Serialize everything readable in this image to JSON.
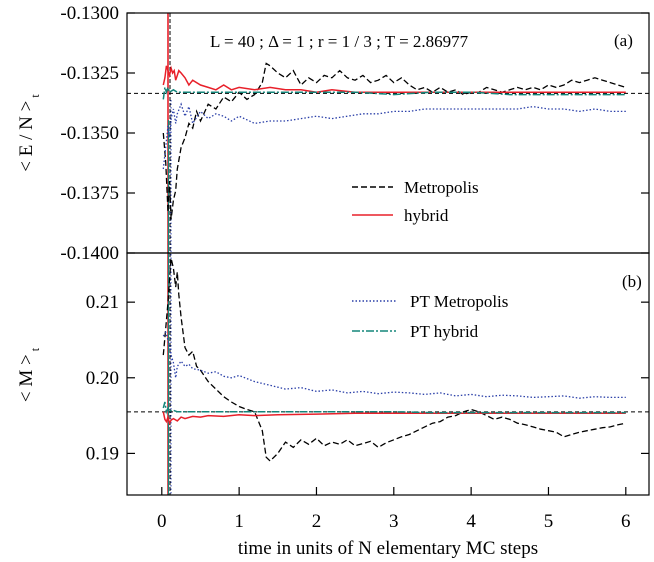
{
  "chart_data": [
    {
      "type": "line",
      "panel_label": "(a)",
      "annotation": "L = 40 ;  Δ = 1 ;  r = 1 / 3 ;  T = 2.86977",
      "ylabel": "< E / N >",
      "ylabel_sub": "t",
      "ylim": [
        -0.14,
        -0.13
      ],
      "yticks": [
        "-0.1300",
        "-0.1325",
        "-0.1350",
        "-0.1375",
        "-0.1400"
      ],
      "ytick_values": [
        -0.13,
        -0.1325,
        -0.135,
        -0.1375,
        -0.14
      ],
      "xlim": [
        -0.45,
        6.3
      ],
      "reference_line": -0.13335,
      "legend": [
        "Metropolis",
        "hybrid"
      ],
      "series": [
        {
          "name": "Metropolis",
          "color": "#000000",
          "dash": "6,3",
          "x": [
            0.02,
            0.05,
            0.08,
            0.1,
            0.12,
            0.15,
            0.18,
            0.2,
            0.25,
            0.3,
            0.35,
            0.4,
            0.45,
            0.5,
            0.6,
            0.7,
            0.8,
            0.9,
            1.0,
            1.1,
            1.2,
            1.3,
            1.35,
            1.4,
            1.5,
            1.6,
            1.7,
            1.8,
            1.9,
            2.0,
            2.1,
            2.2,
            2.3,
            2.4,
            2.5,
            2.6,
            2.7,
            2.8,
            2.9,
            3.0,
            3.1,
            3.2,
            3.3,
            3.4,
            3.5,
            3.6,
            3.7,
            3.8,
            3.9,
            4.0,
            4.1,
            4.2,
            4.3,
            4.4,
            4.5,
            4.6,
            4.7,
            4.8,
            4.9,
            5.0,
            5.1,
            5.2,
            5.3,
            5.4,
            5.5,
            5.6,
            5.7,
            5.8,
            5.9,
            6.0
          ],
          "y": [
            -0.135,
            -0.1362,
            -0.1383,
            -0.137,
            -0.1386,
            -0.1378,
            -0.1374,
            -0.1365,
            -0.1356,
            -0.1352,
            -0.1346,
            -0.1348,
            -0.1341,
            -0.1345,
            -0.1338,
            -0.134,
            -0.1335,
            -0.1337,
            -0.1333,
            -0.1336,
            -0.1334,
            -0.1329,
            -0.1321,
            -0.1322,
            -0.1325,
            -0.1327,
            -0.1324,
            -0.133,
            -0.1327,
            -0.1329,
            -0.1326,
            -0.1327,
            -0.1324,
            -0.1327,
            -0.1328,
            -0.1326,
            -0.1329,
            -0.1328,
            -0.1326,
            -0.1329,
            -0.1327,
            -0.133,
            -0.1332,
            -0.1331,
            -0.1333,
            -0.1331,
            -0.1333,
            -0.1332,
            -0.1334,
            -0.1333,
            -0.1333,
            -0.1331,
            -0.1332,
            -0.1333,
            -0.1332,
            -0.1331,
            -0.1332,
            -0.1331,
            -0.1332,
            -0.133,
            -0.1331,
            -0.133,
            -0.1328,
            -0.1329,
            -0.1328,
            -0.1327,
            -0.1328,
            -0.1329,
            -0.133,
            -0.1331
          ]
        },
        {
          "name": "hybrid",
          "color": "#e8202a",
          "dash": "",
          "x": [
            0.02,
            0.04,
            0.06,
            0.08,
            0.1,
            0.12,
            0.14,
            0.16,
            0.18,
            0.2,
            0.22,
            0.25,
            0.3,
            0.35,
            0.4,
            0.5,
            0.6,
            0.7,
            0.8,
            0.9,
            1.0,
            1.2,
            1.4,
            1.6,
            1.8,
            2.0,
            2.2,
            2.5,
            3.0,
            3.5,
            4.0,
            4.5,
            5.0,
            5.5,
            6.0
          ],
          "y": [
            -0.133,
            -0.1327,
            -0.1322,
            -0.1324,
            -0.1326,
            -0.1323,
            -0.1325,
            -0.1324,
            -0.1328,
            -0.1326,
            -0.1324,
            -0.1325,
            -0.1327,
            -0.133,
            -0.1328,
            -0.133,
            -0.1331,
            -0.1332,
            -0.133,
            -0.1332,
            -0.1331,
            -0.1332,
            -0.1331,
            -0.1332,
            -0.1332,
            -0.1333,
            -0.1332,
            -0.1333,
            -0.1333,
            -0.1333,
            -0.1333,
            -0.1333,
            -0.1333,
            -0.1333,
            -0.1333
          ]
        },
        {
          "name": "PT Metropolis",
          "color": "#2a3fa8",
          "dash": "1.5,2",
          "x": [
            0.02,
            0.05,
            0.08,
            0.1,
            0.12,
            0.15,
            0.18,
            0.2,
            0.25,
            0.3,
            0.35,
            0.4,
            0.5,
            0.6,
            0.7,
            0.8,
            0.9,
            1.0,
            1.2,
            1.4,
            1.6,
            1.8,
            2.0,
            2.2,
            2.4,
            2.6,
            2.8,
            3.0,
            3.2,
            3.4,
            3.6,
            3.8,
            4.0,
            4.2,
            4.4,
            4.6,
            4.8,
            5.0,
            5.2,
            5.4,
            5.6,
            5.8,
            6.0
          ],
          "y": [
            -0.1365,
            -0.1356,
            -0.1347,
            -0.1352,
            -0.1344,
            -0.134,
            -0.1346,
            -0.1342,
            -0.1338,
            -0.1343,
            -0.1339,
            -0.1346,
            -0.1341,
            -0.1344,
            -0.1342,
            -0.1343,
            -0.1345,
            -0.1343,
            -0.1346,
            -0.1345,
            -0.1345,
            -0.1344,
            -0.1343,
            -0.1344,
            -0.1343,
            -0.1342,
            -0.1342,
            -0.1341,
            -0.1341,
            -0.134,
            -0.134,
            -0.134,
            -0.134,
            -0.134,
            -0.134,
            -0.134,
            -0.1339,
            -0.134,
            -0.134,
            -0.1341,
            -0.134,
            -0.1341,
            -0.1341
          ]
        },
        {
          "name": "PT hybrid",
          "color": "#14857a",
          "dash": "8,2,2,2",
          "x": [
            0.02,
            0.04,
            0.06,
            0.08,
            0.1,
            0.15,
            0.2,
            0.3,
            0.4,
            0.5,
            0.7,
            1.0,
            1.5,
            2.0,
            2.5,
            3.0,
            3.5,
            4.0,
            4.5,
            5.0,
            5.5,
            6.0
          ],
          "y": [
            -0.1336,
            -0.1331,
            -0.1333,
            -0.1331,
            -0.1333,
            -0.1332,
            -0.1333,
            -0.1333,
            -0.1333,
            -0.1333,
            -0.1333,
            -0.1333,
            -0.1333,
            -0.1333,
            -0.1333,
            -0.1334,
            -0.1333,
            -0.1333,
            -0.1334,
            -0.1334,
            -0.1334,
            -0.1334
          ]
        }
      ]
    },
    {
      "type": "line",
      "panel_label": "(b)",
      "ylabel": "< M >",
      "ylabel_sub": "t",
      "ylim": [
        0.1845,
        0.2165
      ],
      "yticks": [
        "0.21",
        "0.20",
        "0.19"
      ],
      "ytick_values": [
        0.21,
        0.2,
        0.19
      ],
      "xlim": [
        -0.45,
        6.3
      ],
      "xticks": [
        "0",
        "1",
        "2",
        "3",
        "4",
        "5",
        "6"
      ],
      "xtick_values": [
        0,
        1,
        2,
        3,
        4,
        5,
        6
      ],
      "xlabel": "time in units of N elementary MC steps",
      "reference_line": 0.1955,
      "legend": [
        "PT Metropolis",
        "PT hybrid"
      ],
      "series": [
        {
          "name": "Metropolis",
          "color": "#000000",
          "dash": "6,3",
          "x": [
            0.02,
            0.05,
            0.08,
            0.1,
            0.12,
            0.15,
            0.18,
            0.2,
            0.22,
            0.25,
            0.3,
            0.35,
            0.4,
            0.45,
            0.5,
            0.6,
            0.7,
            0.8,
            0.9,
            1.0,
            1.1,
            1.2,
            1.3,
            1.35,
            1.4,
            1.5,
            1.6,
            1.7,
            1.8,
            1.9,
            2.0,
            2.1,
            2.2,
            2.3,
            2.4,
            2.5,
            2.6,
            2.7,
            2.8,
            2.9,
            3.0,
            3.1,
            3.2,
            3.3,
            3.4,
            3.5,
            3.6,
            3.7,
            3.8,
            3.9,
            4.0,
            4.1,
            4.2,
            4.3,
            4.4,
            4.5,
            4.6,
            4.7,
            4.8,
            4.9,
            5.0,
            5.1,
            5.2,
            5.3,
            5.4,
            5.5,
            5.6,
            5.7,
            5.8,
            5.9,
            6.0
          ],
          "y": [
            0.203,
            0.2065,
            0.21,
            0.213,
            0.2158,
            0.2145,
            0.212,
            0.214,
            0.211,
            0.208,
            0.204,
            0.203,
            0.2035,
            0.2015,
            0.201,
            0.1995,
            0.1985,
            0.1975,
            0.1968,
            0.1962,
            0.1958,
            0.1955,
            0.193,
            0.1895,
            0.189,
            0.19,
            0.1915,
            0.1908,
            0.1918,
            0.1912,
            0.192,
            0.191,
            0.1915,
            0.1912,
            0.1918,
            0.191,
            0.1913,
            0.1916,
            0.1908,
            0.1914,
            0.1918,
            0.1922,
            0.1925,
            0.193,
            0.1935,
            0.194,
            0.1942,
            0.1948,
            0.195,
            0.1955,
            0.1958,
            0.1955,
            0.195,
            0.1945,
            0.1948,
            0.1945,
            0.194,
            0.1938,
            0.1935,
            0.1932,
            0.193,
            0.1928,
            0.1922,
            0.1925,
            0.1928,
            0.193,
            0.1932,
            0.1934,
            0.1935,
            0.1938,
            0.194
          ]
        },
        {
          "name": "hybrid",
          "color": "#e8202a",
          "dash": "",
          "x": [
            0.02,
            0.04,
            0.06,
            0.08,
            0.1,
            0.12,
            0.15,
            0.2,
            0.25,
            0.3,
            0.4,
            0.5,
            0.6,
            0.8,
            1.0,
            1.2,
            1.5,
            2.0,
            2.5,
            3.0,
            3.5,
            4.0,
            4.5,
            5.0,
            5.5,
            6.0
          ],
          "y": [
            0.1955,
            0.1945,
            0.1942,
            0.1948,
            0.194,
            0.1944,
            0.1946,
            0.1943,
            0.1948,
            0.1946,
            0.1949,
            0.1948,
            0.195,
            0.1949,
            0.1951,
            0.195,
            0.1951,
            0.1952,
            0.1953,
            0.1953,
            0.1953,
            0.1953,
            0.1953,
            0.1953,
            0.1953,
            0.1953
          ]
        },
        {
          "name": "PT Metropolis",
          "color": "#2a3fa8",
          "dash": "1.5,2",
          "x": [
            0.02,
            0.05,
            0.08,
            0.1,
            0.12,
            0.15,
            0.18,
            0.2,
            0.25,
            0.3,
            0.35,
            0.4,
            0.5,
            0.6,
            0.7,
            0.8,
            0.9,
            1.0,
            1.2,
            1.4,
            1.6,
            1.8,
            2.0,
            2.2,
            2.4,
            2.6,
            2.8,
            3.0,
            3.2,
            3.4,
            3.6,
            3.8,
            4.0,
            4.2,
            4.4,
            4.6,
            4.8,
            5.0,
            5.2,
            5.4,
            5.6,
            5.8,
            6.0
          ],
          "y": [
            0.2055,
            0.206,
            0.205,
            0.204,
            0.203,
            0.202,
            0.2,
            0.2015,
            0.2022,
            0.2015,
            0.2018,
            0.2012,
            0.201,
            0.2006,
            0.2008,
            0.2002,
            0.2,
            0.2003,
            0.1995,
            0.199,
            0.1985,
            0.1987,
            0.1982,
            0.1984,
            0.198,
            0.1982,
            0.1979,
            0.1981,
            0.198,
            0.1978,
            0.198,
            0.1976,
            0.1978,
            0.1975,
            0.1977,
            0.1976,
            0.1974,
            0.1975,
            0.1976,
            0.1973,
            0.1975,
            0.1974,
            0.1974
          ]
        },
        {
          "name": "PT hybrid",
          "color": "#14857a",
          "dash": "8,2,2,2",
          "x": [
            0.02,
            0.04,
            0.06,
            0.08,
            0.1,
            0.15,
            0.2,
            0.3,
            0.4,
            0.5,
            0.7,
            1.0,
            1.5,
            2.0,
            2.5,
            3.0,
            3.5,
            4.0,
            4.5,
            5.0,
            5.5,
            6.0
          ],
          "y": [
            0.196,
            0.1968,
            0.1955,
            0.196,
            0.1956,
            0.1957,
            0.1955,
            0.1955,
            0.1955,
            0.1955,
            0.1955,
            0.1955,
            0.1955,
            0.1955,
            0.1955,
            0.1955,
            0.1954,
            0.1954,
            0.1954,
            0.1954,
            0.1954,
            0.1954
          ]
        }
      ]
    }
  ]
}
